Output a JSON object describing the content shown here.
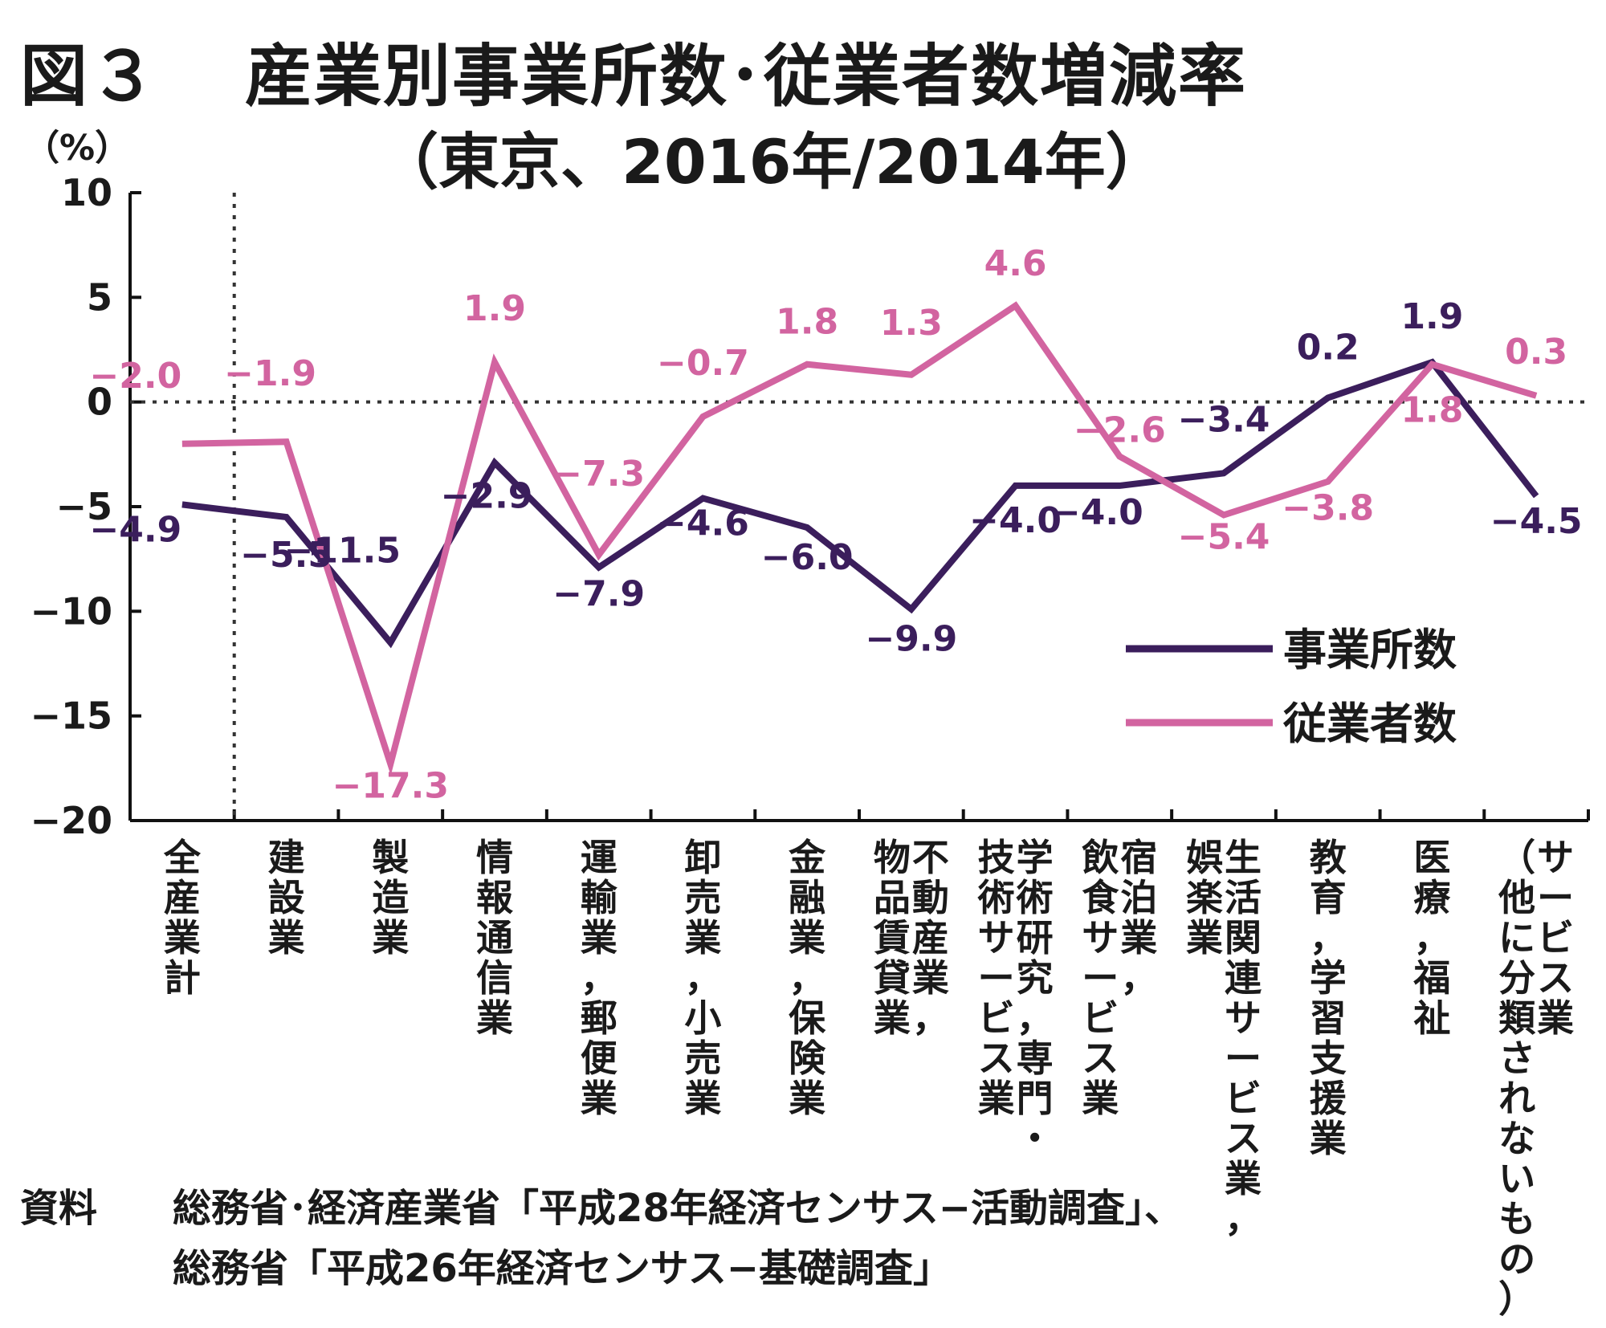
{
  "title_prefix": "図３",
  "title": "産業別事業所数･従業者数増減率",
  "subtitle": "（東京、2016年/2014年）",
  "unit": "（%）",
  "source": {
    "label": "資料",
    "line1": "総務省･経済産業省「平成28年経済センサス−活動調査」、",
    "line2": "総務省「平成26年経済センサス−基礎調査」"
  },
  "chart_data": {
    "type": "line",
    "title": "産業別事業所数･従業者数増減率（東京、2016年/2014年）",
    "ylabel": "（%）",
    "ylim": [
      -20,
      10
    ],
    "yticks": [
      "10",
      "5",
      "0",
      "−5",
      "−10",
      "−15",
      "−20"
    ],
    "categories": [
      "全産業計",
      "建設業",
      "製造業",
      "情報通信業",
      "運輸業，郵便業",
      "卸売業，小売業",
      "金融業，保険業",
      "不動産業，物品賃貸業",
      "学術研究，専門・技術サービス業",
      "宿泊業，飲食サービス業",
      "生活関連サービス業，娯楽業",
      "教育，学習支援業",
      "医療，福祉",
      "サービス業（他に分類されないもの）"
    ],
    "category_label_columns": [
      [
        "全産業計"
      ],
      [
        "建設業"
      ],
      [
        "製造業"
      ],
      [
        "情報通信業"
      ],
      [
        "運輸業，郵便業"
      ],
      [
        "卸売業，小売業"
      ],
      [
        "金融業，保険業"
      ],
      [
        "物品賃貸業",
        "不動産業，"
      ],
      [
        "技術サービス業",
        "学術研究，専門・"
      ],
      [
        "飲食サービス業",
        "宿泊業，"
      ],
      [
        "娯楽業",
        "生活関連サービス業，"
      ],
      [
        "教育，学習支援業"
      ],
      [
        "医療，福祉"
      ],
      [
        "（他に分類されないもの）",
        "サービス業"
      ]
    ],
    "series": [
      {
        "name": "事業所数",
        "color": "#3b1e5c",
        "values": [
          -4.9,
          -5.5,
          -11.5,
          -2.9,
          -7.9,
          -4.6,
          -6.0,
          -9.9,
          -4.0,
          -4.0,
          -3.4,
          0.2,
          1.9,
          -4.5
        ],
        "labels": [
          "−4.9",
          "−5.5",
          "−11.5",
          "−2.9",
          "−7.9",
          "−4.6",
          "−6.0",
          "−9.9",
          "−4.0",
          "−4.0",
          "−3.4",
          "0.2",
          "1.9",
          "−4.5"
        ]
      },
      {
        "name": "従業者数",
        "color": "#d264a0",
        "values": [
          -2.0,
          -1.9,
          -17.3,
          1.9,
          -7.3,
          -0.7,
          1.8,
          1.3,
          4.6,
          -2.6,
          -5.4,
          -3.8,
          1.8,
          0.3
        ],
        "labels": [
          "−2.0",
          "−1.9",
          "−17.3",
          "1.9",
          "−7.3",
          "−0.7",
          "1.8",
          "1.3",
          "4.6",
          "−2.6",
          "−5.4",
          "−3.8",
          "1.8",
          "0.3"
        ]
      }
    ],
    "reference_line": 0,
    "separator_after_category": 0,
    "legend_position": "lower right"
  }
}
